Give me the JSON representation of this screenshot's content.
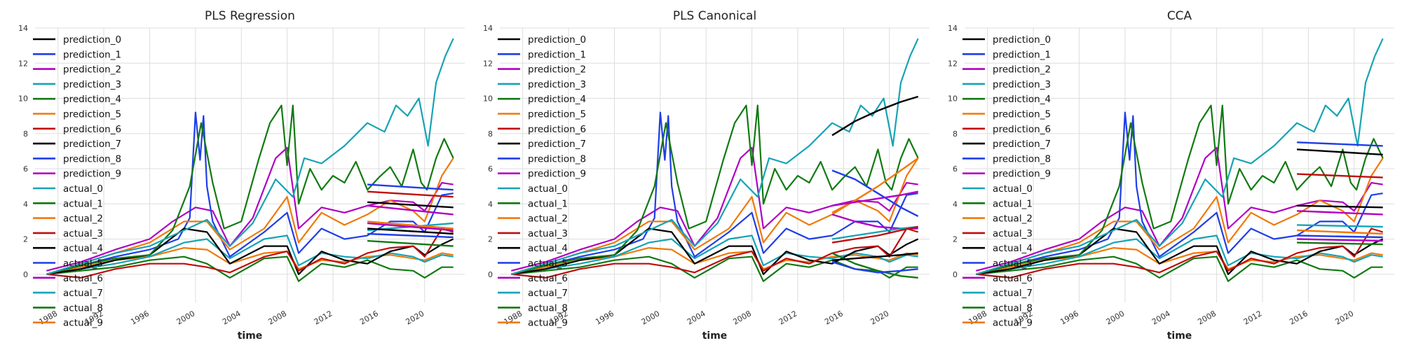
{
  "colors": {
    "prediction_0": "#000000",
    "prediction_1": "#1f3ee8",
    "prediction_2": "#b000c2",
    "prediction_3": "#16a3b5",
    "prediction_4": "#117a12",
    "prediction_5": "#ef7a0a",
    "prediction_6": "#c00d0d",
    "prediction_7": "#000000",
    "prediction_8": "#1f3ee8",
    "prediction_9": "#b000c2",
    "actual_0": "#16a3b5",
    "actual_1": "#117a12",
    "actual_2": "#ef7a0a",
    "actual_3": "#c00d0d",
    "actual_4": "#000000",
    "actual_5": "#1f3ee8",
    "actual_6": "#b000c2",
    "actual_7": "#16a3b5",
    "actual_8": "#117a12",
    "actual_9": "#ef7a0a"
  },
  "chart_data": [
    {
      "type": "line",
      "title": "PLS Regression",
      "xlabel": "time",
      "ylabel": "",
      "xlim": [
        1986.0,
        2023.5
      ],
      "ylim": [
        -1.6,
        14
      ],
      "xticks": [
        "1988",
        "1992",
        "1996",
        "2000",
        "2004",
        "2008",
        "2012",
        "2016",
        "2020"
      ],
      "yticks": [
        "0",
        "2",
        "4",
        "6",
        "8",
        "10",
        "12",
        "14"
      ],
      "grid": true,
      "legend_position": "top-left",
      "legend": [
        "prediction_0",
        "prediction_1",
        "prediction_2",
        "prediction_3",
        "prediction_4",
        "prediction_5",
        "prediction_6",
        "prediction_7",
        "prediction_8",
        "prediction_9",
        "actual_0",
        "actual_1",
        "actual_2",
        "actual_3",
        "actual_4",
        "actual_5",
        "actual_6",
        "actual_7",
        "actual_8",
        "actual_9"
      ],
      "actual_series": [
        {
          "name": "actual_0",
          "x": [
            1987,
            1990,
            1993,
            1996,
            1999,
            2001,
            2003,
            2005,
            2007,
            2008.5,
            2009.5,
            2011,
            2013,
            2015,
            2016.5,
            2017.5,
            2018.5,
            2019.5,
            2020.3,
            2021,
            2021.8,
            2022.5
          ],
          "y": [
            0,
            0.6,
            1.2,
            1.6,
            2.5,
            3.1,
            1.6,
            2.9,
            5.4,
            4.4,
            6.6,
            6.3,
            7.3,
            8.6,
            8.1,
            9.6,
            9.0,
            10.0,
            7.3,
            10.9,
            12.4,
            13.4
          ]
        },
        {
          "name": "actual_1",
          "x": [
            1987,
            1990,
            1993,
            1996,
            1998,
            1999.5,
            2000.5,
            2001.5,
            2002.5,
            2004,
            2005.5,
            2006.5,
            2007.5,
            2008,
            2008.5,
            2009,
            2010,
            2011,
            2012,
            2013,
            2014,
            2015,
            2016,
            2017,
            2018,
            2019,
            2019.7,
            2020.2,
            2021,
            2021.7,
            2022.5
          ],
          "y": [
            0,
            0.5,
            0.9,
            1.1,
            2.5,
            5.0,
            8.6,
            5.2,
            2.6,
            3.0,
            6.5,
            8.6,
            9.6,
            6.2,
            9.6,
            4.0,
            6.0,
            4.8,
            5.6,
            5.2,
            6.4,
            4.8,
            5.5,
            6.1,
            5.0,
            7.1,
            5.2,
            4.8,
            6.6,
            7.7,
            6.6
          ]
        },
        {
          "name": "actual_2",
          "x": [
            1987,
            1990,
            1993,
            1996,
            1999,
            2001,
            2003,
            2006,
            2008,
            2009,
            2011,
            2013,
            2015,
            2017,
            2019,
            2020,
            2021.5,
            2022.5
          ],
          "y": [
            0,
            0.6,
            1.2,
            1.8,
            3.0,
            3.0,
            1.4,
            2.6,
            4.4,
            1.8,
            3.5,
            2.8,
            3.4,
            4.2,
            3.6,
            3.0,
            5.6,
            6.6
          ]
        },
        {
          "name": "actual_3",
          "x": [
            1987,
            1990,
            1993,
            1996,
            1999,
            2001,
            2003,
            2006,
            2008,
            2009,
            2011,
            2013,
            2015,
            2017,
            2019,
            2020,
            2021.5,
            2022.5
          ],
          "y": [
            0,
            -0.2,
            0.3,
            0.6,
            0.6,
            0.4,
            0.1,
            1.0,
            1.3,
            0.2,
            0.9,
            0.6,
            1.2,
            1.5,
            1.6,
            1.0,
            2.6,
            2.4
          ]
        },
        {
          "name": "actual_4",
          "x": [
            1987,
            1990,
            1993,
            1996,
            1999,
            2001,
            2003,
            2006,
            2008,
            2009,
            2011,
            2013,
            2015,
            2017,
            2019,
            2020,
            2021.5,
            2022.5
          ],
          "y": [
            0,
            0.3,
            0.8,
            1.1,
            2.6,
            2.4,
            0.6,
            1.6,
            1.6,
            0.0,
            1.3,
            0.8,
            0.6,
            1.3,
            1.6,
            1.1,
            1.7,
            2.0
          ]
        },
        {
          "name": "actual_5",
          "x": [
            1987,
            1990,
            1993,
            1996,
            1998.5,
            1999.5,
            2000,
            2000.4,
            2000.7,
            2001,
            2001.5,
            2003,
            2006,
            2008,
            2009,
            2011,
            2013,
            2015,
            2017,
            2019,
            2020,
            2021.5,
            2022.5
          ],
          "y": [
            0,
            0.5,
            1.0,
            1.4,
            2.0,
            3.2,
            9.2,
            6.5,
            9.0,
            5.0,
            3.0,
            1.0,
            2.4,
            3.5,
            1.2,
            2.6,
            2.0,
            2.2,
            3.0,
            3.0,
            2.4,
            4.5,
            4.6
          ]
        },
        {
          "name": "actual_6",
          "x": [
            1987,
            1990,
            1993,
            1996,
            1998,
            2000,
            2001.5,
            2003,
            2005,
            2007,
            2008,
            2009,
            2011,
            2013,
            2015,
            2017,
            2019,
            2020,
            2021.5,
            2022.5
          ],
          "y": [
            0.2,
            0.7,
            1.4,
            2.0,
            3.0,
            3.8,
            3.6,
            1.6,
            3.2,
            6.6,
            7.2,
            2.6,
            3.8,
            3.5,
            3.9,
            4.2,
            4.1,
            3.6,
            5.2,
            5.1
          ]
        },
        {
          "name": "actual_7",
          "x": [
            1987,
            1990,
            1993,
            1996,
            1999,
            2001,
            2003,
            2006,
            2008,
            2009,
            2011,
            2013,
            2015,
            2017,
            2019,
            2020,
            2021.5,
            2022.5
          ],
          "y": [
            0,
            0.3,
            0.6,
            1.0,
            1.8,
            2.0,
            0.9,
            2.0,
            2.2,
            0.5,
            1.2,
            1.0,
            0.9,
            1.2,
            1.0,
            0.7,
            1.1,
            1.0
          ]
        },
        {
          "name": "actual_8",
          "x": [
            1987,
            1990,
            1993,
            1996,
            1999,
            2001,
            2003,
            2006,
            2008,
            2009,
            2011,
            2013,
            2015,
            2017,
            2019,
            2020,
            2021.5,
            2022.5
          ],
          "y": [
            0,
            0.2,
            0.4,
            0.8,
            1.0,
            0.6,
            -0.2,
            0.9,
            1.0,
            -0.4,
            0.6,
            0.4,
            0.8,
            0.3,
            0.2,
            -0.2,
            0.4,
            0.4
          ]
        },
        {
          "name": "actual_9",
          "x": [
            1987,
            1990,
            1993,
            1996,
            1999,
            2001,
            2003,
            2006,
            2008,
            2009,
            2011,
            2013,
            2015,
            2017,
            2019,
            2020,
            2021.5,
            2022.5
          ],
          "y": [
            0,
            0.4,
            0.8,
            1.0,
            1.5,
            1.4,
            0.6,
            1.2,
            1.3,
            0.3,
            0.8,
            0.7,
            1.0,
            1.1,
            0.9,
            0.8,
            1.2,
            1.1
          ]
        }
      ],
      "prediction_series": [
        {
          "name": "prediction_0",
          "x": [
            2015,
            2022.5
          ],
          "y": [
            4.1,
            3.8
          ]
        },
        {
          "name": "prediction_1",
          "x": [
            2015,
            2022.5
          ],
          "y": [
            5.1,
            4.8
          ]
        },
        {
          "name": "prediction_2",
          "x": [
            2015,
            2022.5
          ],
          "y": [
            3.9,
            3.4
          ]
        },
        {
          "name": "prediction_3",
          "x": [
            2015,
            2022.5
          ],
          "y": [
            2.5,
            2.9
          ]
        },
        {
          "name": "prediction_4",
          "x": [
            2015,
            2022.5
          ],
          "y": [
            1.9,
            1.6
          ]
        },
        {
          "name": "prediction_5",
          "x": [
            2015,
            2022.5
          ],
          "y": [
            3.0,
            2.6
          ]
        },
        {
          "name": "prediction_6",
          "x": [
            2015,
            2022.5
          ],
          "y": [
            4.7,
            4.4
          ]
        },
        {
          "name": "prediction_7",
          "x": [
            2015,
            2022.5
          ],
          "y": [
            2.6,
            2.3
          ]
        },
        {
          "name": "prediction_8",
          "x": [
            2015,
            2022.5
          ],
          "y": [
            2.3,
            2.1
          ]
        },
        {
          "name": "prediction_9",
          "x": [
            2015,
            2022.5
          ],
          "y": [
            2.9,
            2.5
          ]
        }
      ]
    },
    {
      "type": "line",
      "title": "PLS Canonical",
      "xlabel": "time",
      "ylabel": "",
      "xlim": [
        1986.0,
        2023.5
      ],
      "ylim": [
        -1.6,
        14
      ],
      "xticks": [
        "1988",
        "1992",
        "1996",
        "2000",
        "2004",
        "2008",
        "2012",
        "2016",
        "2020"
      ],
      "yticks": [
        "0",
        "2",
        "4",
        "6",
        "8",
        "10",
        "12",
        "14"
      ],
      "grid": true,
      "legend_position": "top-left",
      "legend": [
        "prediction_0",
        "prediction_1",
        "prediction_2",
        "prediction_3",
        "prediction_4",
        "prediction_5",
        "prediction_6",
        "prediction_7",
        "prediction_8",
        "prediction_9",
        "actual_0",
        "actual_1",
        "actual_2",
        "actual_3",
        "actual_4",
        "actual_5",
        "actual_6",
        "actual_7",
        "actual_8",
        "actual_9"
      ],
      "actual_series": "same_as_panel_1",
      "prediction_series": [
        {
          "name": "prediction_0",
          "x": [
            2015,
            2017,
            2019,
            2021,
            2022.5
          ],
          "y": [
            7.9,
            8.7,
            9.3,
            9.8,
            10.1
          ]
        },
        {
          "name": "prediction_1",
          "x": [
            2015,
            2017,
            2019,
            2021,
            2022.5
          ],
          "y": [
            5.9,
            5.4,
            4.6,
            3.8,
            3.3
          ]
        },
        {
          "name": "prediction_2",
          "x": [
            2015,
            2017,
            2019,
            2021,
            2022.5
          ],
          "y": [
            3.4,
            3.0,
            2.7,
            2.6,
            2.6
          ]
        },
        {
          "name": "prediction_3",
          "x": [
            2015,
            2017,
            2019,
            2021,
            2022.5
          ],
          "y": [
            2.0,
            2.2,
            2.4,
            2.6,
            2.7
          ]
        },
        {
          "name": "prediction_4",
          "x": [
            2015,
            2017,
            2019,
            2021,
            2022.5
          ],
          "y": [
            1.2,
            0.6,
            0.2,
            -0.1,
            -0.2
          ]
        },
        {
          "name": "prediction_5",
          "x": [
            2015,
            2017,
            2019,
            2021,
            2022.5
          ],
          "y": [
            3.5,
            4.2,
            5.0,
            5.9,
            6.6
          ]
        },
        {
          "name": "prediction_6",
          "x": [
            2015,
            2017,
            2019,
            2021,
            2022.5
          ],
          "y": [
            1.8,
            2.0,
            2.2,
            2.5,
            2.7
          ]
        },
        {
          "name": "prediction_7",
          "x": [
            2015,
            2017,
            2019,
            2021,
            2022.5
          ],
          "y": [
            0.8,
            0.9,
            1.0,
            1.1,
            1.2
          ]
        },
        {
          "name": "prediction_8",
          "x": [
            2015,
            2017,
            2019,
            2021,
            2022.5
          ],
          "y": [
            0.7,
            0.3,
            0.1,
            0.2,
            0.3
          ]
        },
        {
          "name": "prediction_9",
          "x": [
            2015,
            2017,
            2019,
            2021,
            2022.5
          ],
          "y": [
            3.9,
            4.1,
            4.3,
            4.5,
            4.7
          ]
        }
      ]
    },
    {
      "type": "line",
      "title": "CCA",
      "xlabel": "time",
      "ylabel": "",
      "xlim": [
        1986.0,
        2023.5
      ],
      "ylim": [
        -1.6,
        14
      ],
      "xticks": [
        "1988",
        "1992",
        "1996",
        "2000",
        "2004",
        "2008",
        "2012",
        "2016",
        "2020"
      ],
      "yticks": [
        "0",
        "2",
        "4",
        "6",
        "8",
        "10",
        "12",
        "14"
      ],
      "grid": true,
      "legend_position": "top-left",
      "legend": [
        "prediction_0",
        "prediction_1",
        "prediction_2",
        "prediction_3",
        "prediction_4",
        "prediction_5",
        "prediction_6",
        "prediction_7",
        "prediction_8",
        "prediction_9",
        "actual_0",
        "actual_1",
        "actual_2",
        "actual_3",
        "actual_4",
        "actual_5",
        "actual_6",
        "actual_7",
        "actual_8",
        "actual_9"
      ],
      "actual_series": "same_as_panel_1",
      "prediction_series": [
        {
          "name": "prediction_0",
          "x": [
            2015,
            2022.5
          ],
          "y": [
            7.1,
            6.8
          ]
        },
        {
          "name": "prediction_1",
          "x": [
            2015,
            2022.5
          ],
          "y": [
            7.5,
            7.3
          ]
        },
        {
          "name": "prediction_2",
          "x": [
            2015,
            2022.5
          ],
          "y": [
            3.6,
            3.4
          ]
        },
        {
          "name": "prediction_3",
          "x": [
            2015,
            2022.5
          ],
          "y": [
            2.8,
            2.7
          ]
        },
        {
          "name": "prediction_4",
          "x": [
            2015,
            2022.5
          ],
          "y": [
            1.8,
            1.7
          ]
        },
        {
          "name": "prediction_5",
          "x": [
            2015,
            2022.5
          ],
          "y": [
            2.5,
            2.3
          ]
        },
        {
          "name": "prediction_6",
          "x": [
            2015,
            2022.5
          ],
          "y": [
            5.7,
            5.5
          ]
        },
        {
          "name": "prediction_7",
          "x": [
            2015,
            2022.5
          ],
          "y": [
            3.9,
            3.8
          ]
        },
        {
          "name": "prediction_8",
          "x": [
            2015,
            2022.5
          ],
          "y": [
            2.2,
            2.1
          ]
        },
        {
          "name": "prediction_9",
          "x": [
            2015,
            2022.5
          ],
          "y": [
            2.0,
            1.9
          ]
        }
      ]
    }
  ]
}
